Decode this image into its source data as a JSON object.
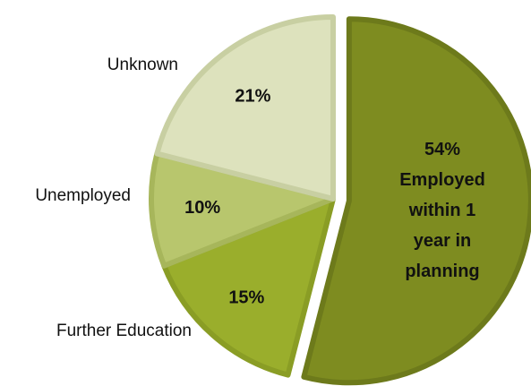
{
  "chart_data": {
    "type": "pie",
    "slices": [
      {
        "name": "Employed within 1 year in planning",
        "value": 54,
        "label": "54%",
        "label_lines": [
          "54%",
          "Employed",
          "within 1",
          "year in",
          "planning"
        ],
        "color": "#7e8c20",
        "outline": "#6d7a1b",
        "exploded": true
      },
      {
        "name": "Further Education",
        "value": 15,
        "label": "15%",
        "color": "#9aae2c",
        "outline": "#8a9d25",
        "exploded": false
      },
      {
        "name": "Unemployed",
        "value": 10,
        "label": "10%",
        "color": "#b8c66d",
        "outline": "#a7b65b",
        "exploded": false
      },
      {
        "name": "Unknown",
        "value": 21,
        "label": "21%",
        "color": "#dde2bd",
        "outline": "#c8cfa2",
        "exploded": false
      }
    ],
    "start_angle_deg": 0,
    "direction": "clockwise",
    "title": "",
    "legend": "none"
  }
}
